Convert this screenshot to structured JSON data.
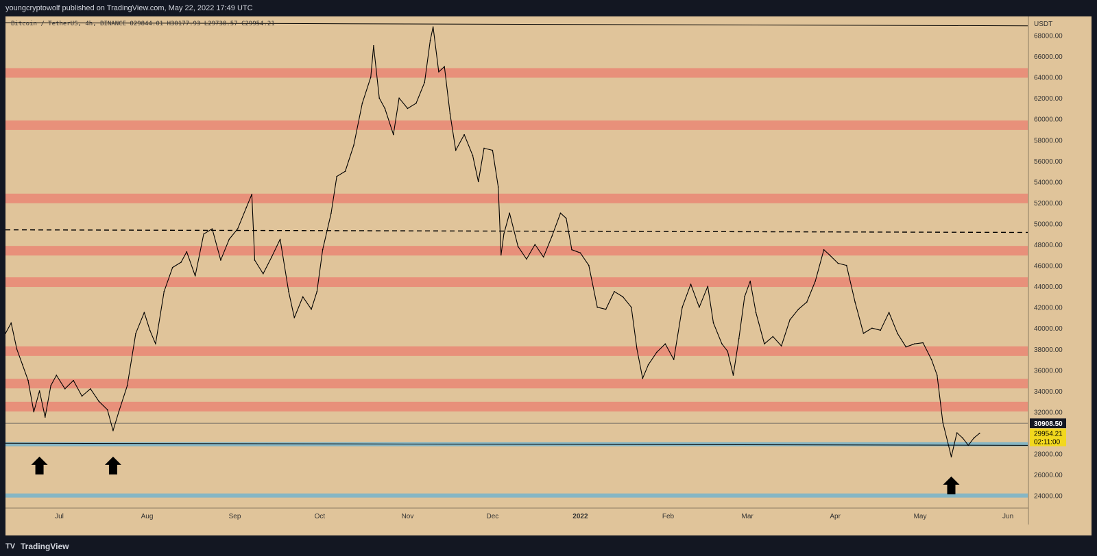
{
  "header": {
    "publisher_line": "youngcryptowolf published on TradingView.com, May 22, 2022 17:49 UTC"
  },
  "symbol": {
    "name": "Bitcoin / TetherUS, 4h, BINANCE",
    "ohlc": "O29844.01 H30177.93 L29738.57 C29954.21"
  },
  "footer": {
    "brand": "TradingView",
    "logo_glyph": "TV"
  },
  "colors": {
    "background": "#e0c49a",
    "resistance": "#e8907a",
    "support": "#86b6c4",
    "price": "#000000"
  },
  "chart_data": {
    "type": "line",
    "title": "Bitcoin / TetherUS, 4h, BINANCE",
    "currency_label": "USDT",
    "y_ticks": [
      68000,
      66000,
      64000,
      62000,
      60000,
      58000,
      56000,
      54000,
      52000,
      50000,
      48000,
      46000,
      44000,
      42000,
      40000,
      38000,
      36000,
      34000,
      32000,
      28000,
      26000,
      24000
    ],
    "y_tick_labels": [
      "68000.00",
      "66000.00",
      "64000.00",
      "62000.00",
      "60000.00",
      "58000.00",
      "56000.00",
      "54000.00",
      "52000.00",
      "50000.00",
      "48000.00",
      "46000.00",
      "44000.00",
      "42000.00",
      "40000.00",
      "38000.00",
      "36000.00",
      "34000.00",
      "32000.00",
      "28000.00",
      "26000.00",
      "24000.00"
    ],
    "ylim": [
      22800,
      69800
    ],
    "xlim": [
      "2021-06-12",
      "2022-06-08"
    ],
    "x_ticks": [
      {
        "label": "Jul",
        "date": "2021-07-01"
      },
      {
        "label": "Aug",
        "date": "2021-08-01"
      },
      {
        "label": "Sep",
        "date": "2021-09-01"
      },
      {
        "label": "Oct",
        "date": "2021-10-01"
      },
      {
        "label": "Nov",
        "date": "2021-11-01"
      },
      {
        "label": "Dec",
        "date": "2021-12-01"
      },
      {
        "label": "2022",
        "date": "2022-01-01"
      },
      {
        "label": "Feb",
        "date": "2022-02-01"
      },
      {
        "label": "Mar",
        "date": "2022-03-01"
      },
      {
        "label": "Apr",
        "date": "2022-04-01"
      },
      {
        "label": "May",
        "date": "2022-05-01"
      },
      {
        "label": "Jun",
        "date": "2022-06-01"
      }
    ],
    "series": [
      {
        "points": [
          [
            "2021-06-12",
            39500
          ],
          [
            "2021-06-14",
            40500
          ],
          [
            "2021-06-16",
            38000
          ],
          [
            "2021-06-18",
            36500
          ],
          [
            "2021-06-20",
            35000
          ],
          [
            "2021-06-22",
            32000
          ],
          [
            "2021-06-24",
            34000
          ],
          [
            "2021-06-26",
            31500
          ],
          [
            "2021-06-28",
            34500
          ],
          [
            "2021-06-30",
            35500
          ],
          [
            "2021-07-03",
            34200
          ],
          [
            "2021-07-06",
            35000
          ],
          [
            "2021-07-09",
            33500
          ],
          [
            "2021-07-12",
            34200
          ],
          [
            "2021-07-15",
            33000
          ],
          [
            "2021-07-18",
            32200
          ],
          [
            "2021-07-20",
            30200
          ],
          [
            "2021-07-22",
            32000
          ],
          [
            "2021-07-25",
            34500
          ],
          [
            "2021-07-28",
            39500
          ],
          [
            "2021-07-31",
            41500
          ],
          [
            "2021-08-02",
            39800
          ],
          [
            "2021-08-04",
            38500
          ],
          [
            "2021-08-07",
            43500
          ],
          [
            "2021-08-10",
            45800
          ],
          [
            "2021-08-13",
            46300
          ],
          [
            "2021-08-15",
            47300
          ],
          [
            "2021-08-18",
            45000
          ],
          [
            "2021-08-21",
            49000
          ],
          [
            "2021-08-24",
            49500
          ],
          [
            "2021-08-27",
            46500
          ],
          [
            "2021-08-30",
            48500
          ],
          [
            "2021-09-02",
            49500
          ],
          [
            "2021-09-05",
            51500
          ],
          [
            "2021-09-07",
            52800
          ],
          [
            "2021-09-08",
            46500
          ],
          [
            "2021-09-11",
            45200
          ],
          [
            "2021-09-14",
            46800
          ],
          [
            "2021-09-17",
            48500
          ],
          [
            "2021-09-20",
            43500
          ],
          [
            "2021-09-22",
            41000
          ],
          [
            "2021-09-25",
            43000
          ],
          [
            "2021-09-28",
            41800
          ],
          [
            "2021-09-30",
            43500
          ],
          [
            "2021-10-02",
            47500
          ],
          [
            "2021-10-05",
            51000
          ],
          [
            "2021-10-07",
            54500
          ],
          [
            "2021-10-10",
            55000
          ],
          [
            "2021-10-13",
            57500
          ],
          [
            "2021-10-16",
            61500
          ],
          [
            "2021-10-19",
            64000
          ],
          [
            "2021-10-20",
            67000
          ],
          [
            "2021-10-22",
            62000
          ],
          [
            "2021-10-24",
            61000
          ],
          [
            "2021-10-27",
            58500
          ],
          [
            "2021-10-29",
            62000
          ],
          [
            "2021-11-01",
            61000
          ],
          [
            "2021-11-04",
            61500
          ],
          [
            "2021-11-07",
            63500
          ],
          [
            "2021-11-09",
            67500
          ],
          [
            "2021-11-10",
            68800
          ],
          [
            "2021-11-12",
            64500
          ],
          [
            "2021-11-14",
            65000
          ],
          [
            "2021-11-16",
            60500
          ],
          [
            "2021-11-18",
            57000
          ],
          [
            "2021-11-21",
            58500
          ],
          [
            "2021-11-24",
            56500
          ],
          [
            "2021-11-26",
            54000
          ],
          [
            "2021-11-28",
            57200
          ],
          [
            "2021-12-01",
            57000
          ],
          [
            "2021-12-03",
            53500
          ],
          [
            "2021-12-04",
            47000
          ],
          [
            "2021-12-05",
            49000
          ],
          [
            "2021-12-07",
            51000
          ],
          [
            "2021-12-10",
            47800
          ],
          [
            "2021-12-13",
            46600
          ],
          [
            "2021-12-16",
            48000
          ],
          [
            "2021-12-19",
            46800
          ],
          [
            "2021-12-22",
            48800
          ],
          [
            "2021-12-25",
            51000
          ],
          [
            "2021-12-27",
            50500
          ],
          [
            "2021-12-29",
            47500
          ],
          [
            "2022-01-01",
            47200
          ],
          [
            "2022-01-04",
            46000
          ],
          [
            "2022-01-07",
            42000
          ],
          [
            "2022-01-10",
            41800
          ],
          [
            "2022-01-13",
            43500
          ],
          [
            "2022-01-16",
            43000
          ],
          [
            "2022-01-19",
            42000
          ],
          [
            "2022-01-21",
            38000
          ],
          [
            "2022-01-23",
            35200
          ],
          [
            "2022-01-25",
            36500
          ],
          [
            "2022-01-28",
            37700
          ],
          [
            "2022-01-31",
            38500
          ],
          [
            "2022-02-03",
            37000
          ],
          [
            "2022-02-06",
            42000
          ],
          [
            "2022-02-09",
            44200
          ],
          [
            "2022-02-12",
            42000
          ],
          [
            "2022-02-15",
            44000
          ],
          [
            "2022-02-17",
            40500
          ],
          [
            "2022-02-20",
            38500
          ],
          [
            "2022-02-22",
            37800
          ],
          [
            "2022-02-24",
            35500
          ],
          [
            "2022-02-26",
            39000
          ],
          [
            "2022-02-28",
            43000
          ],
          [
            "2022-03-02",
            44500
          ],
          [
            "2022-03-04",
            41500
          ],
          [
            "2022-03-07",
            38500
          ],
          [
            "2022-03-10",
            39200
          ],
          [
            "2022-03-13",
            38300
          ],
          [
            "2022-03-16",
            40800
          ],
          [
            "2022-03-19",
            41800
          ],
          [
            "2022-03-22",
            42500
          ],
          [
            "2022-03-25",
            44500
          ],
          [
            "2022-03-28",
            47500
          ],
          [
            "2022-03-30",
            47000
          ],
          [
            "2022-04-02",
            46200
          ],
          [
            "2022-04-05",
            46000
          ],
          [
            "2022-04-08",
            42500
          ],
          [
            "2022-04-11",
            39500
          ],
          [
            "2022-04-14",
            40000
          ],
          [
            "2022-04-17",
            39800
          ],
          [
            "2022-04-20",
            41500
          ],
          [
            "2022-04-23",
            39500
          ],
          [
            "2022-04-26",
            38200
          ],
          [
            "2022-04-29",
            38500
          ],
          [
            "2022-05-02",
            38600
          ],
          [
            "2022-05-05",
            37000
          ],
          [
            "2022-05-07",
            35500
          ],
          [
            "2022-05-09",
            31000
          ],
          [
            "2022-05-11",
            28800
          ],
          [
            "2022-05-12",
            27700
          ],
          [
            "2022-05-14",
            30000
          ],
          [
            "2022-05-16",
            29500
          ],
          [
            "2022-05-18",
            28800
          ],
          [
            "2022-05-20",
            29500
          ],
          [
            "2022-05-22",
            29954
          ]
        ]
      }
    ],
    "horizontal_zones": {
      "resistance": [
        64400,
        59400,
        52400,
        47400,
        44400,
        37800,
        34700,
        32500
      ],
      "support": [
        28900,
        24000
      ]
    },
    "dashed_level": {
      "start": 49400,
      "end": 49150
    },
    "trendlines": [
      {
        "from": [
          "2021-06-12",
          29000
        ],
        "to": [
          "2022-06-08",
          28800
        ]
      },
      {
        "from": [
          "2021-06-12",
          69200
        ],
        "to": [
          "2022-06-08",
          68900
        ]
      }
    ],
    "horizontal_line": 30908.5,
    "price_labels": [
      {
        "value": "30908.50",
        "price": 30908.5
      },
      {
        "value": "29954.21",
        "price": 29954.21
      },
      {
        "value": "02:11:00",
        "price": 29954.21
      }
    ],
    "arrows": [
      {
        "date": "2021-06-24",
        "price": 26800
      },
      {
        "date": "2021-07-20",
        "price": 26800
      },
      {
        "date": "2022-05-12",
        "price": 24900
      }
    ]
  }
}
